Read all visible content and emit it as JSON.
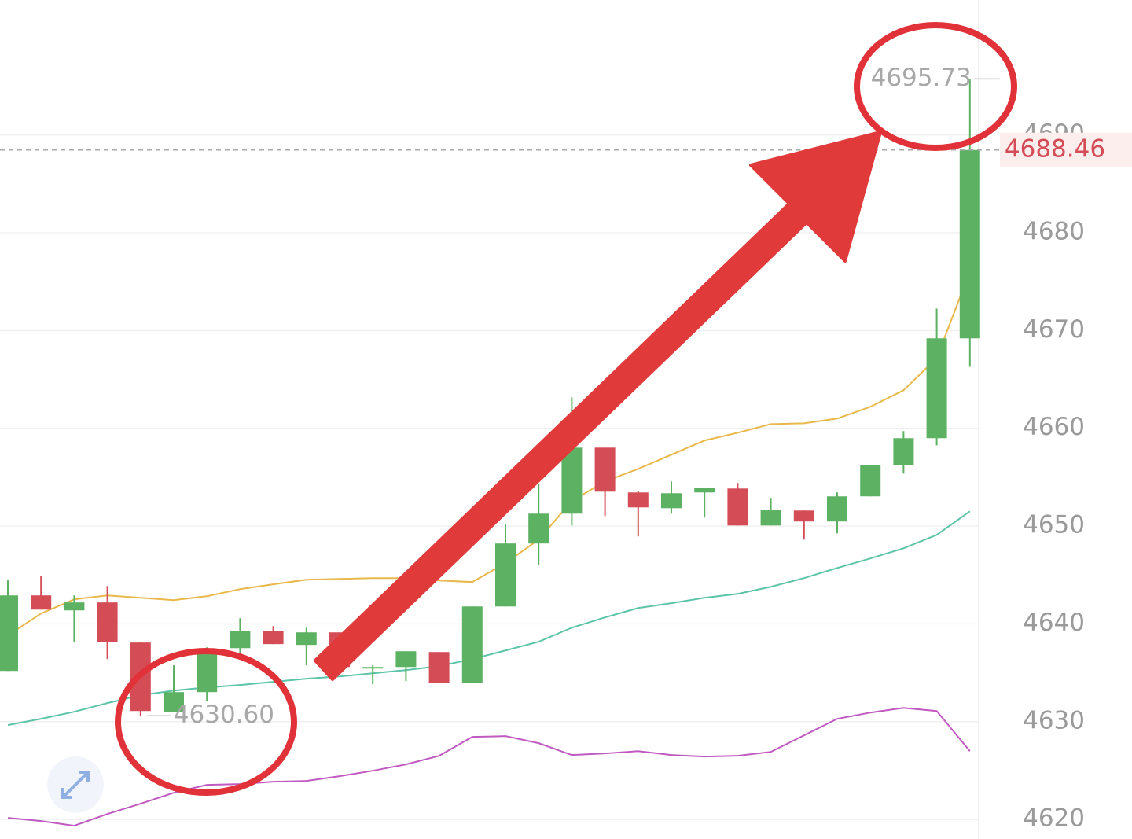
{
  "chart_data": {
    "type": "candlestick",
    "ylim": [
      4618,
      4703.8
    ],
    "yticks": [
      4620,
      4630,
      4640,
      4650,
      4660,
      4670,
      4680,
      4690
    ],
    "grid": true,
    "up_color": "#5cb262",
    "down_color": "#d44c55",
    "candles": {
      "open": [
        4635.19,
        4642.91,
        4641.38,
        4642.19,
        4638.09,
        4631.01,
        4633.02,
        4637.52,
        4639.29,
        4637.85,
        4639.13,
        4635.43,
        4635.59,
        4637.12,
        4633.99,
        4641.78,
        4648.22,
        4651.27,
        4658.02,
        4653.44,
        4651.83,
        4653.44,
        4653.84,
        4650.06,
        4651.59,
        4650.47,
        4653.04,
        4656.25,
        4658.99,
        4669.2
      ],
      "high": [
        4644.52,
        4644.92,
        4642.91,
        4643.87,
        4638.09,
        4635.76,
        4637.6,
        4640.58,
        4639.77,
        4639.61,
        4639.13,
        4635.76,
        4637.2,
        4637.12,
        4641.78,
        4650.23,
        4654.32,
        4663.17,
        4658.02,
        4653.6,
        4654.57,
        4653.92,
        4654.41,
        4652.88,
        4651.59,
        4653.44,
        4656.25,
        4659.71,
        4672.25,
        4695.73
      ],
      "low": [
        4635.19,
        4641.46,
        4638.17,
        4636.4,
        4630.6,
        4631.01,
        4632.06,
        4636.88,
        4637.93,
        4635.76,
        4635.59,
        4633.83,
        4634.15,
        4633.99,
        4633.99,
        4641.78,
        4646.05,
        4650.06,
        4651.03,
        4648.94,
        4651.27,
        4650.87,
        4650.06,
        4650.06,
        4648.62,
        4649.26,
        4653.04,
        4655.37,
        4658.26,
        4666.3
      ],
      "close": [
        4642.91,
        4641.46,
        4642.19,
        4638.17,
        4631.09,
        4633.02,
        4637.44,
        4639.29,
        4637.93,
        4639.13,
        4635.59,
        4635.59,
        4637.2,
        4633.99,
        4641.78,
        4648.22,
        4651.27,
        4658.02,
        4653.52,
        4651.91,
        4653.36,
        4653.92,
        4650.06,
        4651.67,
        4650.47,
        4653.04,
        4656.25,
        4658.99,
        4669.2,
        4688.46
      ]
    },
    "lines": [
      {
        "color": "#e8b84a",
        "values": [
          4638.81,
          4641.06,
          4642.51,
          4642.91,
          4642.67,
          4642.43,
          4642.83,
          4643.55,
          4644.04,
          4644.52,
          4644.6,
          4644.68,
          4644.68,
          4644.44,
          4644.28,
          4646.21,
          4648.62,
          4652.56,
          4654.57,
          4655.85,
          4657.3,
          4658.75,
          4659.55,
          4660.43,
          4660.51,
          4661.0,
          4662.2,
          4663.89,
          4667.19,
          4676.03
        ]
      },
      {
        "color": "#5cc4a8",
        "values": [
          4629.65,
          4630.29,
          4631.01,
          4631.9,
          4632.7,
          4633.18,
          4633.5,
          4633.75,
          4634.07,
          4634.39,
          4634.63,
          4634.95,
          4635.27,
          4635.68,
          4636.4,
          4637.28,
          4638.17,
          4639.61,
          4640.66,
          4641.62,
          4642.11,
          4642.67,
          4643.07,
          4643.79,
          4644.68,
          4645.72,
          4646.69,
          4647.73,
          4649.1,
          4651.51
        ]
      },
      {
        "color": "#c05ac0",
        "values": [
          4620.16,
          4619.84,
          4619.36,
          4620.56,
          4621.61,
          4622.73,
          4623.54,
          4623.62,
          4623.86,
          4623.94,
          4624.42,
          4624.98,
          4625.63,
          4626.51,
          4628.44,
          4628.52,
          4627.8,
          4626.59,
          4626.75,
          4626.99,
          4626.59,
          4626.43,
          4626.51,
          4626.91,
          4628.6,
          4630.29,
          4630.93,
          4631.41,
          4631.09,
          4626.99
        ]
      }
    ],
    "last_price": 4688.46,
    "max_label": "4695.73",
    "min_label": "4630.60"
  }
}
